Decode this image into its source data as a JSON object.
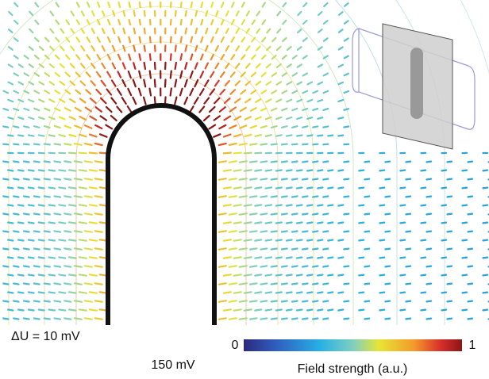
{
  "labels": {
    "delta_u": "ΔU = 10 mV",
    "potential": "150 mV"
  },
  "colorbar": {
    "min": 0,
    "max": 1,
    "title": "Field strength (a.u.)"
  }
}
